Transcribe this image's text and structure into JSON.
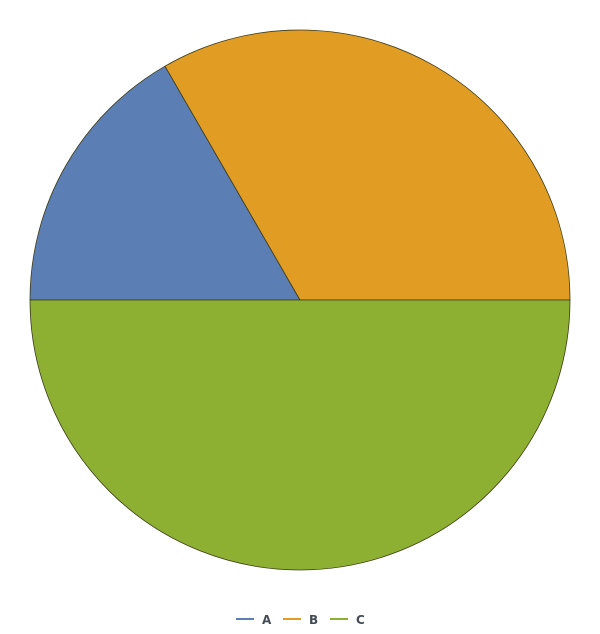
{
  "chart_data": {
    "type": "pie",
    "categories": [
      "A",
      "B",
      "C"
    ],
    "values": [
      1,
      2,
      3
    ],
    "colors": [
      "#5b7fb4",
      "#e09c23",
      "#8db033"
    ],
    "legend": {
      "position": "bottom",
      "entries": [
        "A",
        "B",
        "C"
      ]
    }
  }
}
